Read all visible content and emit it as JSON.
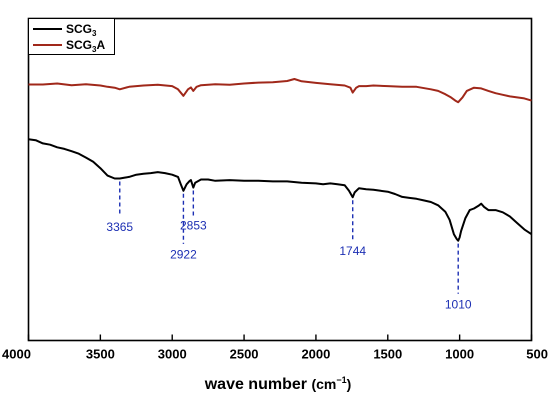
{
  "chart_data": {
    "type": "line",
    "xlabel": "wave number",
    "xlabel_unit": "(cm",
    "xlabel_unit_sup": "−1",
    "xlabel_unit_close": ")",
    "xlim": [
      4000,
      500
    ],
    "x_reversed": true,
    "y_axis_visible": false,
    "ylim": [
      0,
      100
    ],
    "x_ticks": [
      4000,
      3500,
      3000,
      2500,
      2000,
      1500,
      1000,
      500
    ],
    "x_tick_labels": [
      "4000",
      "3500",
      "3000",
      "2500",
      "2000",
      "1500",
      "1000",
      "500"
    ],
    "legend": {
      "placement": "top-left",
      "entries": [
        {
          "label": "SCG",
          "sub": "3",
          "suffix": "",
          "color": "#000000"
        },
        {
          "label": "SCG",
          "sub": "3",
          "suffix": "A",
          "color": "#a0281a"
        }
      ]
    },
    "series": [
      {
        "name": "SCG3A",
        "color": "#a0281a",
        "x": [
          4000,
          3900,
          3800,
          3700,
          3600,
          3500,
          3450,
          3400,
          3365,
          3300,
          3200,
          3100,
          3000,
          2960,
          2922,
          2890,
          2870,
          2853,
          2830,
          2800,
          2700,
          2600,
          2500,
          2400,
          2300,
          2200,
          2150,
          2100,
          2000,
          1900,
          1800,
          1760,
          1744,
          1720,
          1700,
          1650,
          1600,
          1500,
          1400,
          1300,
          1200,
          1150,
          1100,
          1060,
          1030,
          1010,
          980,
          950,
          900,
          850,
          800,
          750,
          700,
          650,
          600,
          550,
          500
        ],
        "y": [
          79.5,
          79.5,
          79.8,
          79.3,
          79.6,
          79.2,
          78.8,
          78.5,
          78.0,
          78.8,
          79.2,
          79.4,
          79.0,
          78.0,
          76.0,
          78.0,
          78.6,
          77.5,
          78.8,
          79.3,
          79.6,
          79.4,
          79.8,
          80.1,
          80.2,
          80.6,
          81.2,
          80.5,
          80.0,
          79.6,
          79.2,
          78.5,
          77.0,
          78.5,
          79.0,
          79.0,
          79.2,
          79.0,
          78.8,
          78.8,
          78.0,
          77.5,
          76.5,
          75.5,
          74.5,
          74.0,
          75.5,
          77.5,
          78.5,
          78.3,
          77.5,
          76.8,
          76.3,
          75.8,
          75.5,
          75.2,
          74.5
        ]
      },
      {
        "name": "SCG3",
        "color": "#000000",
        "x": [
          4000,
          3950,
          3900,
          3850,
          3800,
          3750,
          3700,
          3650,
          3600,
          3550,
          3500,
          3450,
          3400,
          3365,
          3330,
          3300,
          3250,
          3200,
          3150,
          3100,
          3050,
          3000,
          2960,
          2940,
          2922,
          2900,
          2880,
          2870,
          2853,
          2840,
          2800,
          2750,
          2700,
          2600,
          2500,
          2400,
          2300,
          2200,
          2100,
          2000,
          1950,
          1900,
          1850,
          1800,
          1770,
          1744,
          1730,
          1700,
          1650,
          1600,
          1550,
          1500,
          1450,
          1400,
          1350,
          1300,
          1250,
          1200,
          1150,
          1100,
          1070,
          1040,
          1020,
          1010,
          1000,
          990,
          960,
          930,
          900,
          870,
          850,
          830,
          800,
          750,
          700,
          650,
          600,
          550,
          500
        ],
        "y": [
          62.5,
          62.2,
          61.2,
          60.8,
          60.0,
          59.5,
          58.8,
          58.0,
          56.8,
          55.5,
          53.5,
          51.2,
          50.3,
          50.3,
          50.6,
          50.8,
          51.5,
          51.8,
          52.0,
          52.3,
          52.0,
          51.5,
          50.8,
          48.5,
          46.5,
          48.5,
          49.5,
          49.8,
          47.5,
          49.0,
          50.0,
          50.0,
          49.6,
          49.8,
          49.6,
          49.6,
          49.4,
          49.4,
          49.0,
          48.8,
          48.5,
          48.8,
          48.5,
          48.2,
          46.5,
          44.5,
          46.0,
          47.3,
          47.0,
          46.8,
          46.5,
          46.2,
          45.5,
          44.6,
          44.3,
          44.0,
          43.5,
          43.0,
          42.0,
          40.0,
          37.5,
          33.0,
          31.5,
          31.0,
          32.0,
          34.0,
          38.0,
          40.5,
          41.0,
          41.8,
          42.5,
          41.5,
          40.5,
          40.5,
          39.8,
          38.5,
          36.5,
          34.5,
          33.0
        ]
      }
    ],
    "annotations": [
      {
        "label": "3365",
        "x": 3365,
        "y_top": 50.3,
        "y_end": 38.5,
        "text_y": 34.0
      },
      {
        "label": "2922",
        "x": 2922,
        "y_top": 46.5,
        "y_end": 30.0,
        "text_y": 25.5
      },
      {
        "label": "2853",
        "x": 2853,
        "y_top": 47.5,
        "y_end": 38.5,
        "text_y": 34.5
      },
      {
        "label": "1744",
        "x": 1744,
        "y_top": 44.5,
        "y_end": 30.8,
        "text_y": 26.5
      },
      {
        "label": "1010",
        "x": 1010,
        "y_top": 31.0,
        "y_end": 14.5,
        "text_y": 10.0
      }
    ]
  }
}
